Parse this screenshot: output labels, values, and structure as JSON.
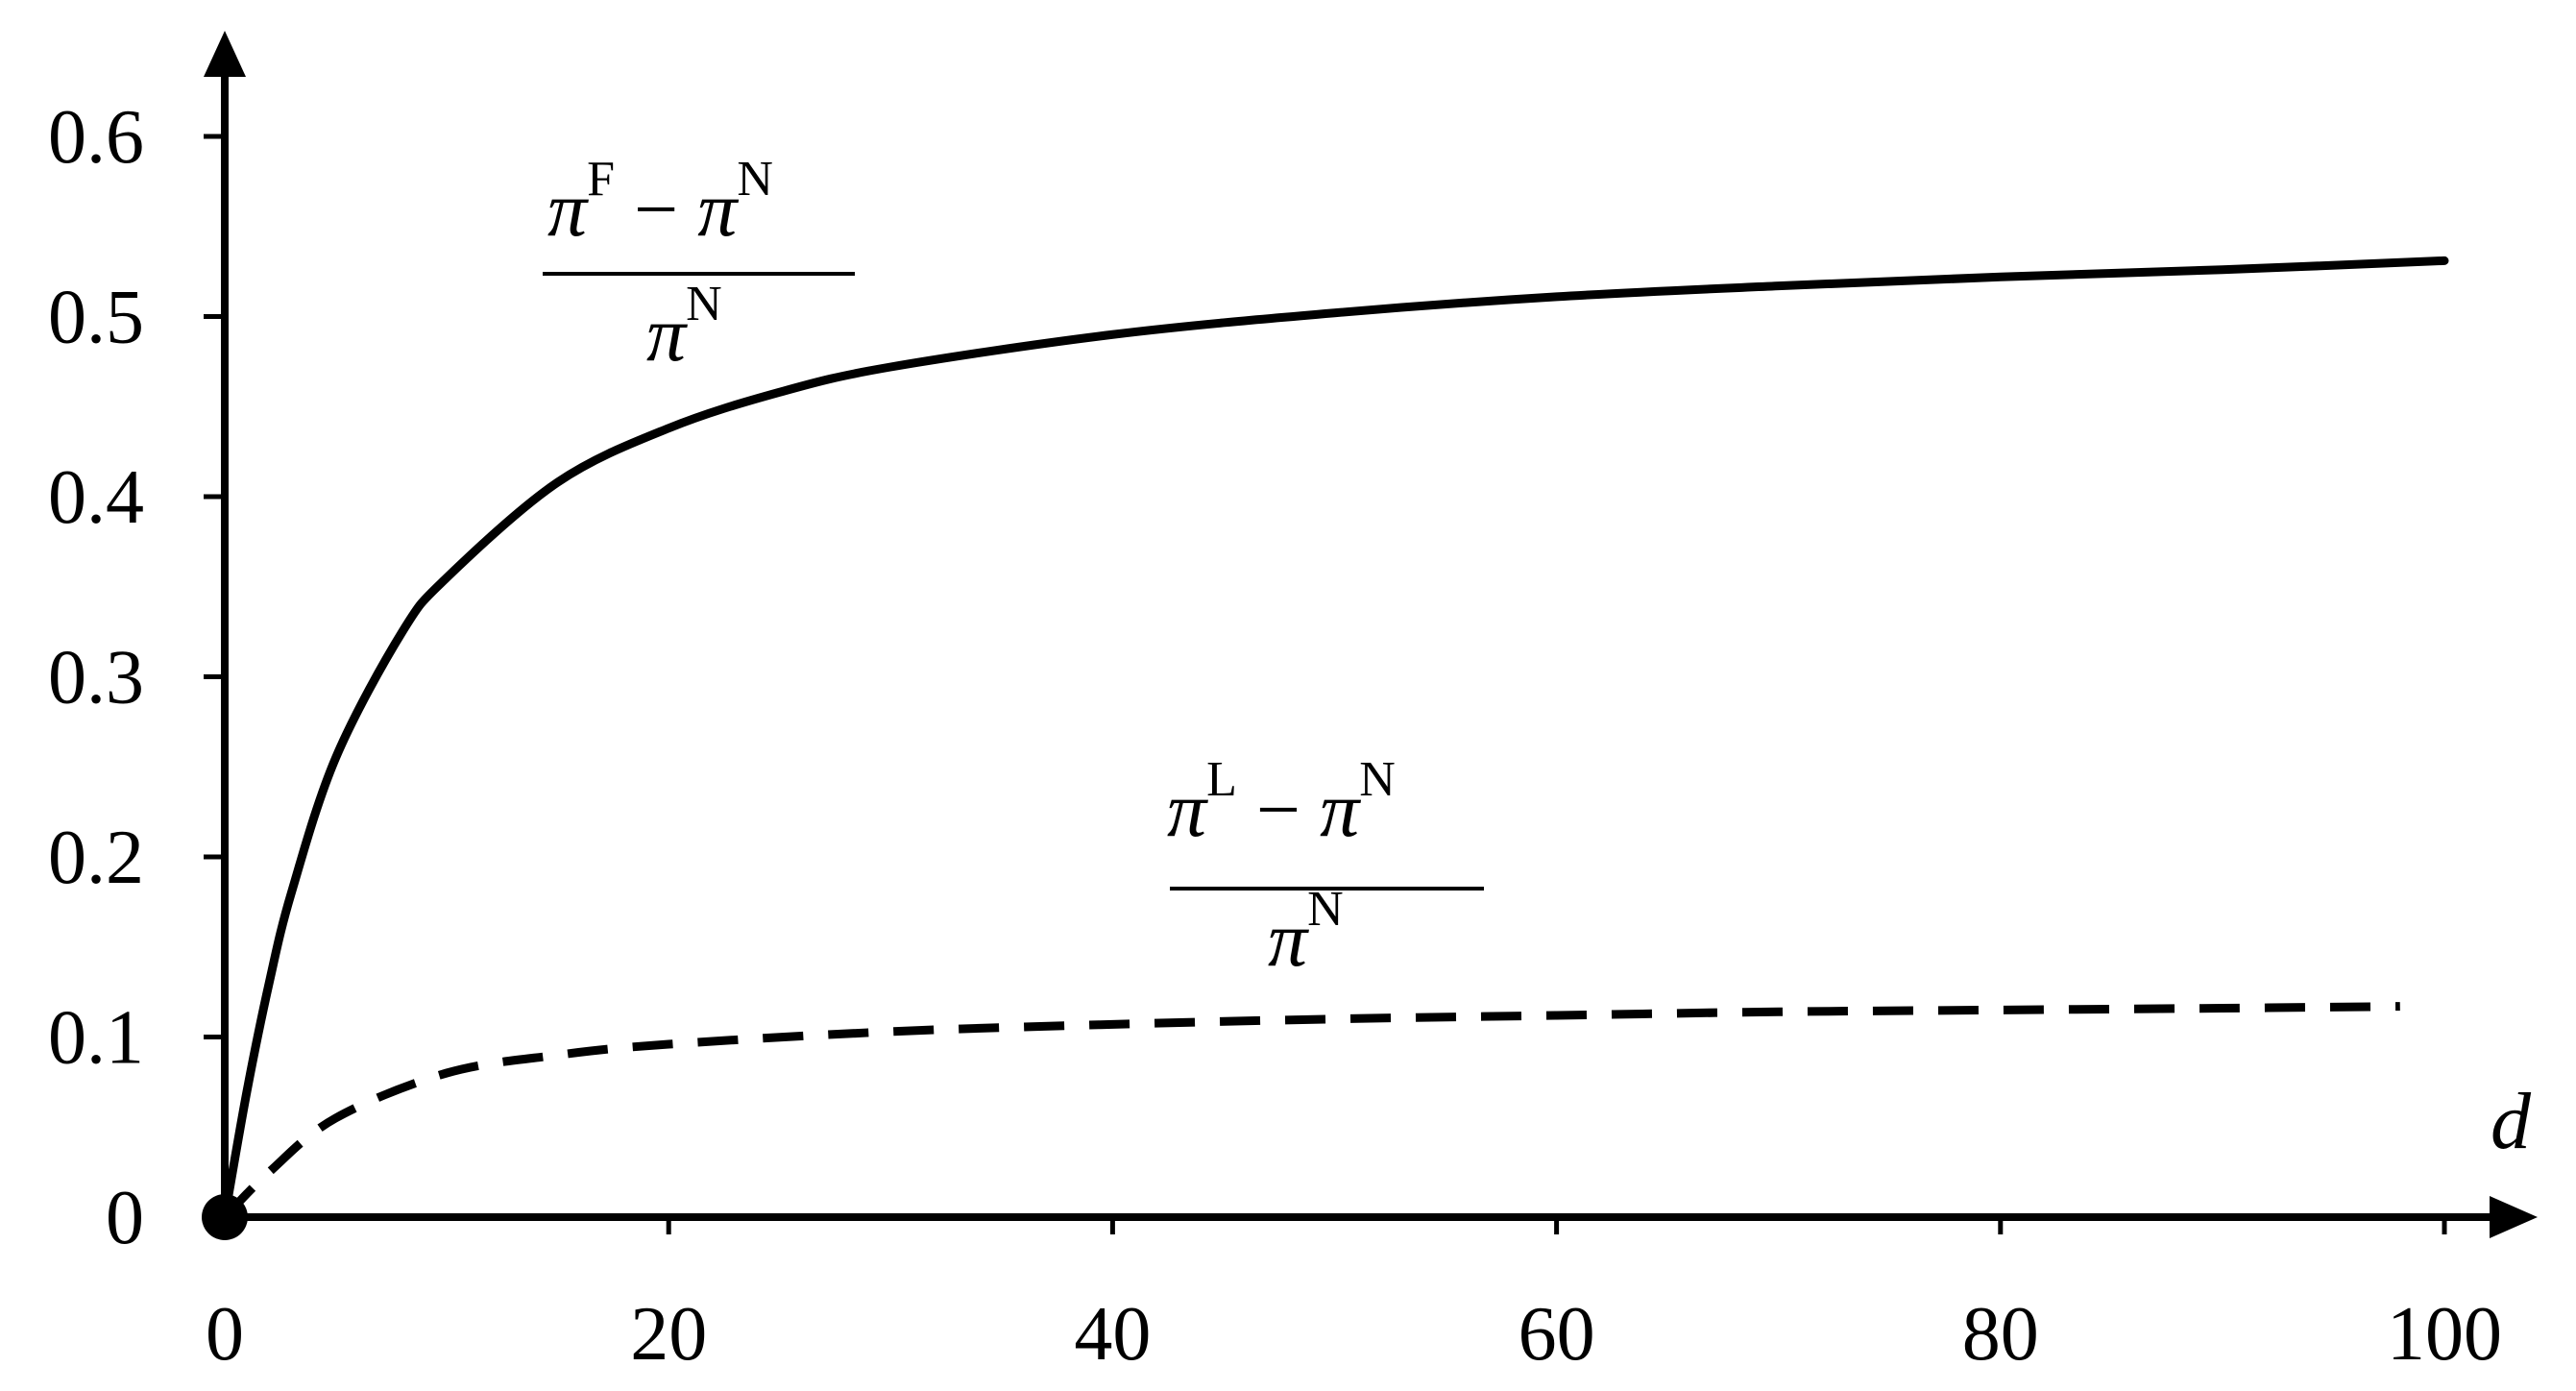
{
  "chart_data": {
    "type": "line",
    "title": "",
    "xlabel": "d",
    "ylabel": "",
    "xlim": [
      0,
      100
    ],
    "ylim": [
      0,
      0.6
    ],
    "xticks": [
      0,
      20,
      40,
      60,
      80,
      100
    ],
    "yticks": [
      0,
      0.1,
      0.2,
      0.3,
      0.4,
      0.5,
      0.6
    ],
    "xtick_labels": [
      "0",
      "20",
      "40",
      "60",
      "80",
      "100"
    ],
    "ytick_labels": [
      "0",
      "0.1",
      "0.2",
      "0.3",
      "0.4",
      "0.5",
      "0.6"
    ],
    "grid": false,
    "legend": "none",
    "origin_marker": true,
    "series": [
      {
        "label": {
          "num_a": "F",
          "num_b": "N",
          "den": "N"
        },
        "style": "solid",
        "color": "#000000",
        "x": [
          0,
          1,
          2,
          3,
          5,
          8,
          10,
          15,
          20,
          25,
          30,
          40,
          50,
          60,
          70,
          80,
          90,
          100
        ],
        "y": [
          0,
          0.07,
          0.13,
          0.18,
          0.255,
          0.325,
          0.355,
          0.408,
          0.438,
          0.458,
          0.472,
          0.49,
          0.502,
          0.511,
          0.517,
          0.522,
          0.526,
          0.531
        ]
      },
      {
        "label": {
          "num_a": "L",
          "num_b": "N",
          "den": "N"
        },
        "style": "dashed",
        "color": "#000000",
        "x": [
          0,
          2,
          5,
          10,
          15,
          20,
          30,
          40,
          50,
          60,
          70,
          80,
          90,
          98
        ],
        "y": [
          0,
          0.025,
          0.055,
          0.08,
          0.09,
          0.096,
          0.103,
          0.107,
          0.11,
          0.112,
          0.114,
          0.115,
          0.116,
          0.117
        ]
      }
    ]
  }
}
